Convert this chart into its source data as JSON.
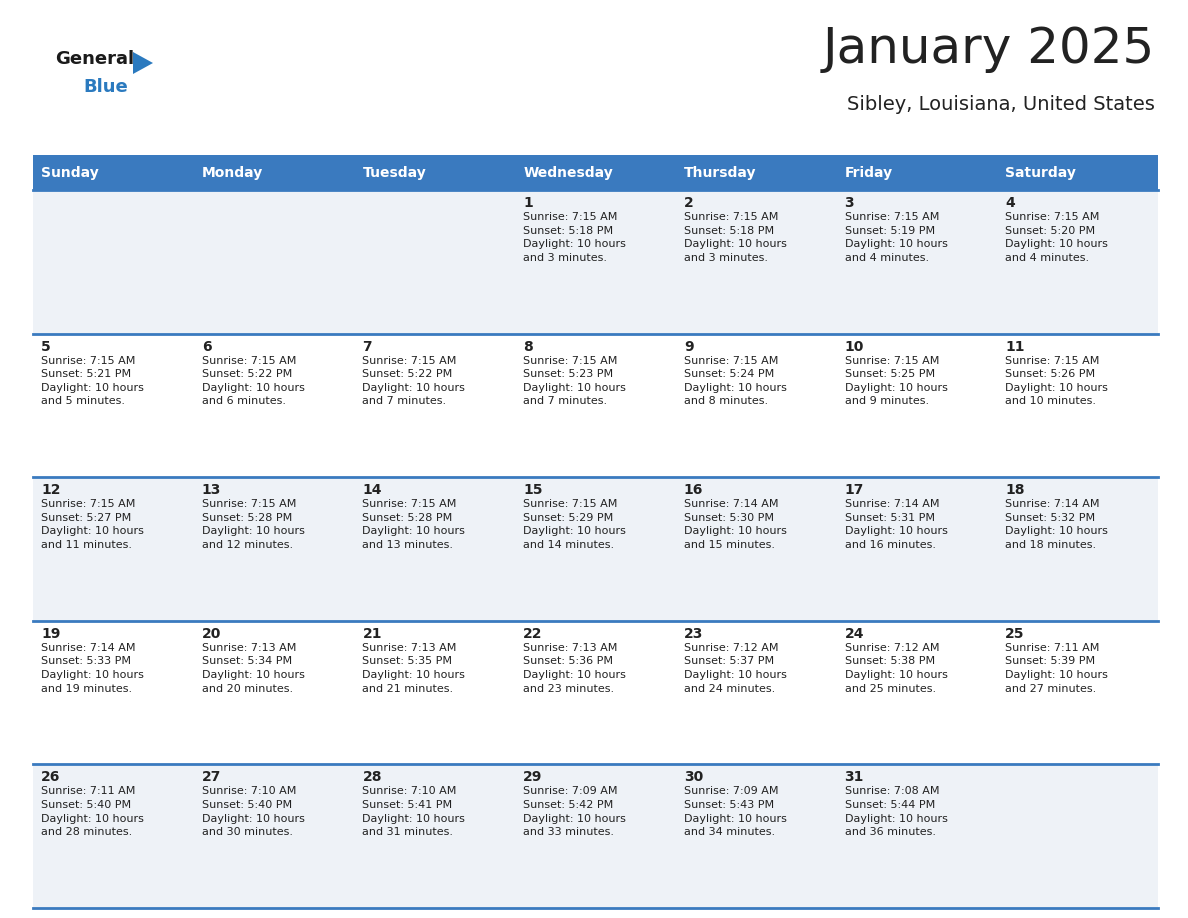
{
  "title": "January 2025",
  "subtitle": "Sibley, Louisiana, United States",
  "header_color": "#3a7abf",
  "header_text_color": "#ffffff",
  "row_bg_odd": "#eef2f7",
  "row_bg_even": "#ffffff",
  "border_color": "#3a7abf",
  "text_color": "#222222",
  "days_of_week": [
    "Sunday",
    "Monday",
    "Tuesday",
    "Wednesday",
    "Thursday",
    "Friday",
    "Saturday"
  ],
  "calendar_data": [
    [
      {
        "day": null,
        "info": null
      },
      {
        "day": null,
        "info": null
      },
      {
        "day": null,
        "info": null
      },
      {
        "day": 1,
        "info": "Sunrise: 7:15 AM\nSunset: 5:18 PM\nDaylight: 10 hours\nand 3 minutes."
      },
      {
        "day": 2,
        "info": "Sunrise: 7:15 AM\nSunset: 5:18 PM\nDaylight: 10 hours\nand 3 minutes."
      },
      {
        "day": 3,
        "info": "Sunrise: 7:15 AM\nSunset: 5:19 PM\nDaylight: 10 hours\nand 4 minutes."
      },
      {
        "day": 4,
        "info": "Sunrise: 7:15 AM\nSunset: 5:20 PM\nDaylight: 10 hours\nand 4 minutes."
      }
    ],
    [
      {
        "day": 5,
        "info": "Sunrise: 7:15 AM\nSunset: 5:21 PM\nDaylight: 10 hours\nand 5 minutes."
      },
      {
        "day": 6,
        "info": "Sunrise: 7:15 AM\nSunset: 5:22 PM\nDaylight: 10 hours\nand 6 minutes."
      },
      {
        "day": 7,
        "info": "Sunrise: 7:15 AM\nSunset: 5:22 PM\nDaylight: 10 hours\nand 7 minutes."
      },
      {
        "day": 8,
        "info": "Sunrise: 7:15 AM\nSunset: 5:23 PM\nDaylight: 10 hours\nand 7 minutes."
      },
      {
        "day": 9,
        "info": "Sunrise: 7:15 AM\nSunset: 5:24 PM\nDaylight: 10 hours\nand 8 minutes."
      },
      {
        "day": 10,
        "info": "Sunrise: 7:15 AM\nSunset: 5:25 PM\nDaylight: 10 hours\nand 9 minutes."
      },
      {
        "day": 11,
        "info": "Sunrise: 7:15 AM\nSunset: 5:26 PM\nDaylight: 10 hours\nand 10 minutes."
      }
    ],
    [
      {
        "day": 12,
        "info": "Sunrise: 7:15 AM\nSunset: 5:27 PM\nDaylight: 10 hours\nand 11 minutes."
      },
      {
        "day": 13,
        "info": "Sunrise: 7:15 AM\nSunset: 5:28 PM\nDaylight: 10 hours\nand 12 minutes."
      },
      {
        "day": 14,
        "info": "Sunrise: 7:15 AM\nSunset: 5:28 PM\nDaylight: 10 hours\nand 13 minutes."
      },
      {
        "day": 15,
        "info": "Sunrise: 7:15 AM\nSunset: 5:29 PM\nDaylight: 10 hours\nand 14 minutes."
      },
      {
        "day": 16,
        "info": "Sunrise: 7:14 AM\nSunset: 5:30 PM\nDaylight: 10 hours\nand 15 minutes."
      },
      {
        "day": 17,
        "info": "Sunrise: 7:14 AM\nSunset: 5:31 PM\nDaylight: 10 hours\nand 16 minutes."
      },
      {
        "day": 18,
        "info": "Sunrise: 7:14 AM\nSunset: 5:32 PM\nDaylight: 10 hours\nand 18 minutes."
      }
    ],
    [
      {
        "day": 19,
        "info": "Sunrise: 7:14 AM\nSunset: 5:33 PM\nDaylight: 10 hours\nand 19 minutes."
      },
      {
        "day": 20,
        "info": "Sunrise: 7:13 AM\nSunset: 5:34 PM\nDaylight: 10 hours\nand 20 minutes."
      },
      {
        "day": 21,
        "info": "Sunrise: 7:13 AM\nSunset: 5:35 PM\nDaylight: 10 hours\nand 21 minutes."
      },
      {
        "day": 22,
        "info": "Sunrise: 7:13 AM\nSunset: 5:36 PM\nDaylight: 10 hours\nand 23 minutes."
      },
      {
        "day": 23,
        "info": "Sunrise: 7:12 AM\nSunset: 5:37 PM\nDaylight: 10 hours\nand 24 minutes."
      },
      {
        "day": 24,
        "info": "Sunrise: 7:12 AM\nSunset: 5:38 PM\nDaylight: 10 hours\nand 25 minutes."
      },
      {
        "day": 25,
        "info": "Sunrise: 7:11 AM\nSunset: 5:39 PM\nDaylight: 10 hours\nand 27 minutes."
      }
    ],
    [
      {
        "day": 26,
        "info": "Sunrise: 7:11 AM\nSunset: 5:40 PM\nDaylight: 10 hours\nand 28 minutes."
      },
      {
        "day": 27,
        "info": "Sunrise: 7:10 AM\nSunset: 5:40 PM\nDaylight: 10 hours\nand 30 minutes."
      },
      {
        "day": 28,
        "info": "Sunrise: 7:10 AM\nSunset: 5:41 PM\nDaylight: 10 hours\nand 31 minutes."
      },
      {
        "day": 29,
        "info": "Sunrise: 7:09 AM\nSunset: 5:42 PM\nDaylight: 10 hours\nand 33 minutes."
      },
      {
        "day": 30,
        "info": "Sunrise: 7:09 AM\nSunset: 5:43 PM\nDaylight: 10 hours\nand 34 minutes."
      },
      {
        "day": 31,
        "info": "Sunrise: 7:08 AM\nSunset: 5:44 PM\nDaylight: 10 hours\nand 36 minutes."
      },
      {
        "day": null,
        "info": null
      }
    ]
  ],
  "logo_text_general": "General",
  "logo_text_blue": "Blue",
  "logo_color_general": "#1a1a1a",
  "logo_color_blue": "#2b7abf",
  "title_fontsize": 36,
  "subtitle_fontsize": 14,
  "header_fontsize": 10,
  "day_num_fontsize": 10,
  "info_fontsize": 8
}
